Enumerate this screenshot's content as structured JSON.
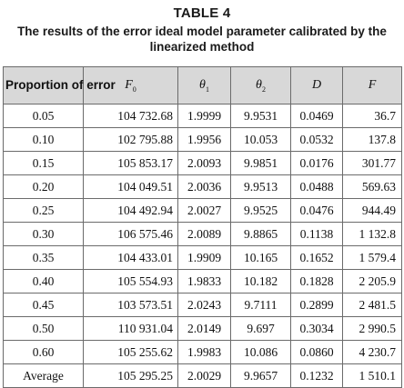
{
  "caption": {
    "label": "TABLE 4",
    "title": "The results of the error ideal model parameter calibrated by the linearized method"
  },
  "headers": {
    "proportion": "Proportion of error",
    "cols": [
      {
        "sym": "F",
        "sub": "0"
      },
      {
        "sym": "θ",
        "sub": "1"
      },
      {
        "sym": "θ",
        "sub": "2"
      },
      {
        "sym": "D",
        "sub": ""
      },
      {
        "sym": "F",
        "sub": ""
      }
    ]
  },
  "rows": [
    [
      "0.05",
      "104 732.68",
      "1.9999",
      "9.9531",
      "0.0469",
      "36.7"
    ],
    [
      "0.10",
      "102 795.88",
      "1.9956",
      "10.053",
      "0.0532",
      "137.8"
    ],
    [
      "0.15",
      "105 853.17",
      "2.0093",
      "9.9851",
      "0.0176",
      "301.77"
    ],
    [
      "0.20",
      "104 049.51",
      "2.0036",
      "9.9513",
      "0.0488",
      "569.63"
    ],
    [
      "0.25",
      "104 492.94",
      "2.0027",
      "9.9525",
      "0.0476",
      "944.49"
    ],
    [
      "0.30",
      "106 575.46",
      "2.0089",
      "9.8865",
      "0.1138",
      "1 132.8"
    ],
    [
      "0.35",
      "104 433.01",
      "1.9909",
      "10.165",
      "0.1652",
      "1 579.4"
    ],
    [
      "0.40",
      "105 554.93",
      "1.9833",
      "10.182",
      "0.1828",
      "2 205.9"
    ],
    [
      "0.45",
      "103 573.51",
      "2.0243",
      "9.7111",
      "0.2899",
      "2 481.5"
    ],
    [
      "0.50",
      "110 931.04",
      "2.0149",
      "9.697",
      "0.3034",
      "2 990.5"
    ],
    [
      "0.60",
      "105 255.62",
      "1.9983",
      "10.086",
      "0.0860",
      "4 230.7"
    ],
    [
      "Average",
      "105 295.25",
      "2.0029",
      "9.9657",
      "0.1232",
      "1 510.1"
    ]
  ]
}
